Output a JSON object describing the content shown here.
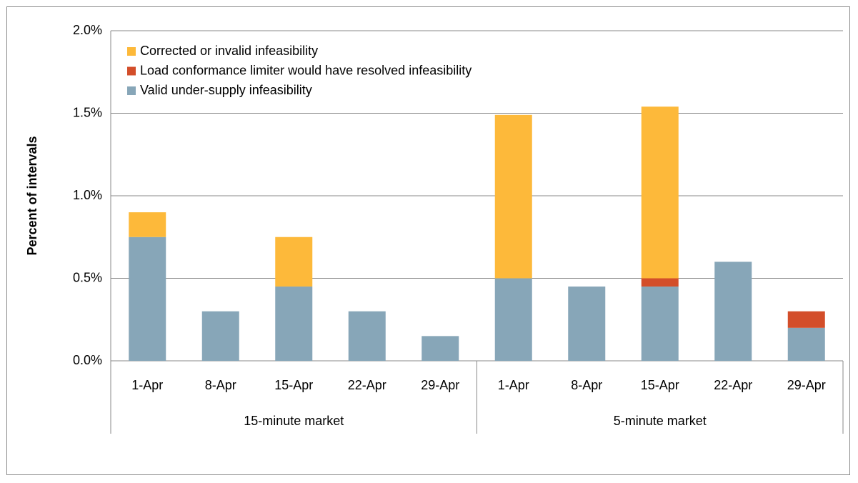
{
  "chart_data": {
    "type": "stacked_bar",
    "ylabel": "Percent of intervals",
    "groups": [
      {
        "label": "15-minute market",
        "categories": [
          "1-Apr",
          "8-Apr",
          "15-Apr",
          "22-Apr",
          "29-Apr"
        ]
      },
      {
        "label": "5-minute market",
        "categories": [
          "1-Apr",
          "8-Apr",
          "15-Apr",
          "22-Apr",
          "29-Apr"
        ]
      }
    ],
    "series": [
      {
        "name": "Valid under-supply infeasibility",
        "color": "#87a6b8",
        "values": [
          0.75,
          0.3,
          0.45,
          0.3,
          0.15,
          0.5,
          0.45,
          0.45,
          0.6,
          0.2
        ]
      },
      {
        "name": "Load conformance limiter would have resolved infeasibility",
        "color": "#d34e2a",
        "values": [
          0,
          0,
          0,
          0,
          0,
          0,
          0,
          0.05,
          0,
          0.1
        ]
      },
      {
        "name": "Corrected or invalid infeasibility",
        "color": "#fdb93a",
        "values": [
          0.15,
          0,
          0.3,
          0,
          0,
          0.99,
          0,
          1.04,
          0,
          0
        ]
      }
    ],
    "ylim": [
      0,
      2
    ],
    "yticks": [
      {
        "value": 0,
        "label": "0.0%"
      },
      {
        "value": 0.5,
        "label": "0.5%"
      },
      {
        "value": 1,
        "label": "1.0%"
      },
      {
        "value": 1.5,
        "label": "1.5%"
      },
      {
        "value": 2,
        "label": "2.0%"
      }
    ],
    "grid": true,
    "legend": "upper left"
  }
}
